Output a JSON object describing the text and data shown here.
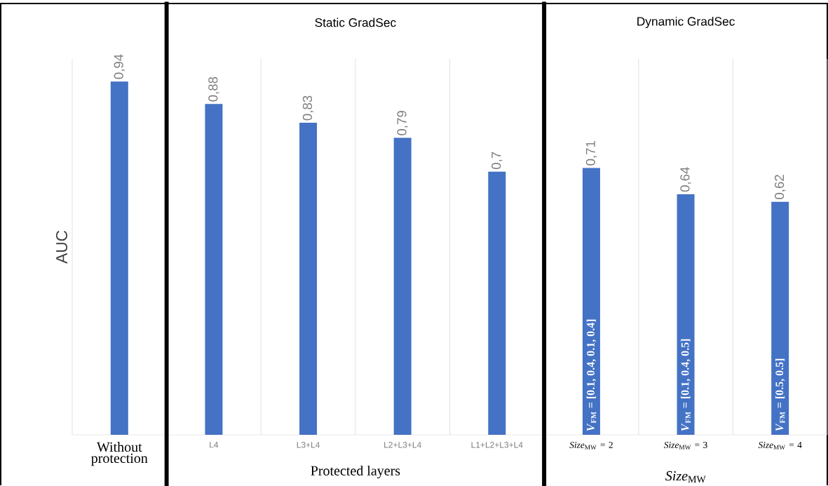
{
  "chart_data": {
    "type": "bar",
    "ylabel": "AUC",
    "categories": [
      "Without protection",
      "L4",
      "L3+L4",
      "L2+L3+L4",
      "L1+L2+L3+L4",
      "*Size*$_{MW}$ = 2",
      "*Size*$_{MW}$ = 3",
      "*Size*$_{MW}$ = 4"
    ],
    "values": [
      0.94,
      0.88,
      0.83,
      0.79,
      0.7,
      0.71,
      0.64,
      0.62
    ],
    "value_labels": [
      "0,94",
      "0,88",
      "0,83",
      "0,79",
      "0,7",
      "0,71",
      "0,64",
      "0,62"
    ],
    "color": "#4472c4",
    "ylim": [
      0,
      1
    ],
    "tick_labels": "x",
    "grid": "x",
    "annotations": [
      "Static GradSec",
      "Dynamic GradSec",
      "Protected layers",
      "*Size*$_{MW}$",
      "*V*$_{FM}$ = [0.1, 0.4, 0.1, 0.4]",
      "*V*$_{FM}$ = [0.1, 0.4, 0.5]",
      "*V*$_{FM}$ = [0.5, 0.5]"
    ]
  }
}
